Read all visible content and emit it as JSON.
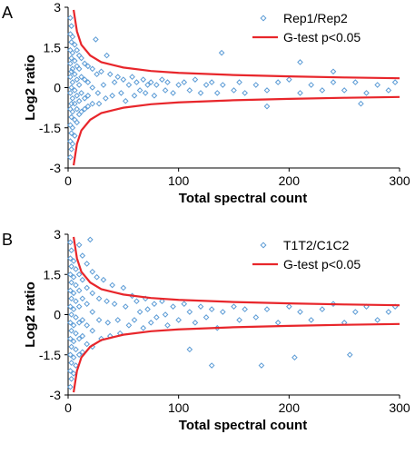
{
  "chart_data": [
    {
      "type": "scatter",
      "panel_label": "A",
      "xlabel": "Total spectral count",
      "ylabel": "Log2 ratio",
      "xlim": [
        0,
        300
      ],
      "ylim": [
        -3,
        3
      ],
      "xticks": [
        "0",
        "100",
        "200",
        "300"
      ],
      "yticks": [
        "3",
        "1.5",
        "0",
        "-1.5",
        "-3"
      ],
      "legend_position": "top-right",
      "grid": false,
      "colors": {
        "points": "#5b9bd5",
        "line": "#e8262b"
      },
      "series": [
        {
          "name": "Rep1/Rep2",
          "kind": "points",
          "points": [
            [
              2,
              2.6
            ],
            [
              2,
              2.0
            ],
            [
              2,
              1.4
            ],
            [
              2,
              0.9
            ],
            [
              2,
              0.4
            ],
            [
              2,
              -0.2
            ],
            [
              2,
              -0.8
            ],
            [
              2,
              -1.4
            ],
            [
              2,
              -2.0
            ],
            [
              2,
              -2.6
            ],
            [
              3,
              2.3
            ],
            [
              3,
              1.7
            ],
            [
              3,
              1.1
            ],
            [
              3,
              0.6
            ],
            [
              3,
              0.0
            ],
            [
              3,
              -0.6
            ],
            [
              3,
              -1.1
            ],
            [
              3,
              -1.7
            ],
            [
              3,
              -2.3
            ],
            [
              4,
              1.9
            ],
            [
              4,
              1.3
            ],
            [
              4,
              0.7
            ],
            [
              4,
              0.2
            ],
            [
              4,
              -0.4
            ],
            [
              4,
              -0.9
            ],
            [
              4,
              -1.5
            ],
            [
              4,
              -2.1
            ],
            [
              6,
              1.6
            ],
            [
              6,
              1.0
            ],
            [
              6,
              0.5
            ],
            [
              6,
              -0.1
            ],
            [
              6,
              -0.6
            ],
            [
              6,
              -1.2
            ],
            [
              6,
              -1.8
            ],
            [
              8,
              1.4
            ],
            [
              8,
              0.8
            ],
            [
              8,
              0.3
            ],
            [
              8,
              -0.3
            ],
            [
              8,
              -0.8
            ],
            [
              8,
              -1.3
            ],
            [
              10,
              1.2
            ],
            [
              10,
              0.7
            ],
            [
              10,
              0.1
            ],
            [
              10,
              -0.5
            ],
            [
              10,
              -1.0
            ],
            [
              12,
              1.1
            ],
            [
              12,
              0.4
            ],
            [
              12,
              -0.2
            ],
            [
              12,
              -0.9
            ],
            [
              15,
              0.9
            ],
            [
              15,
              0.3
            ],
            [
              15,
              -0.4
            ],
            [
              15,
              -0.8
            ],
            [
              18,
              0.8
            ],
            [
              18,
              0.2
            ],
            [
              18,
              -0.3
            ],
            [
              18,
              -0.7
            ],
            [
              22,
              0.7
            ],
            [
              22,
              0.0
            ],
            [
              22,
              -0.6
            ],
            [
              25,
              1.8
            ],
            [
              26,
              0.5
            ],
            [
              27,
              -0.2
            ],
            [
              28,
              -0.6
            ],
            [
              30,
              0.6
            ],
            [
              32,
              0.1
            ],
            [
              34,
              -0.4
            ],
            [
              35,
              1.2
            ],
            [
              38,
              0.5
            ],
            [
              40,
              -0.3
            ],
            [
              42,
              0.2
            ],
            [
              45,
              0.4
            ],
            [
              48,
              -0.2
            ],
            [
              50,
              0.3
            ],
            [
              52,
              -0.5
            ],
            [
              55,
              0.1
            ],
            [
              58,
              0.4
            ],
            [
              60,
              -0.3
            ],
            [
              62,
              0.2
            ],
            [
              65,
              -0.1
            ],
            [
              68,
              0.3
            ],
            [
              70,
              -0.2
            ],
            [
              72,
              0.1
            ],
            [
              75,
              0.2
            ],
            [
              78,
              -0.3
            ],
            [
              80,
              0.1
            ],
            [
              85,
              0.3
            ],
            [
              88,
              -0.1
            ],
            [
              90,
              0.2
            ],
            [
              95,
              -0.2
            ],
            [
              100,
              0.1
            ],
            [
              105,
              0.2
            ],
            [
              110,
              -0.1
            ],
            [
              115,
              0.3
            ],
            [
              120,
              -0.2
            ],
            [
              125,
              0.1
            ],
            [
              130,
              0.2
            ],
            [
              135,
              -0.2
            ],
            [
              140,
              0.1
            ],
            [
              150,
              -0.1
            ],
            [
              155,
              0.2
            ],
            [
              160,
              -0.2
            ],
            [
              170,
              0.1
            ],
            [
              180,
              -0.1
            ],
            [
              190,
              0.2
            ],
            [
              200,
              0.3
            ],
            [
              210,
              -0.2
            ],
            [
              220,
              0.1
            ],
            [
              230,
              -0.1
            ],
            [
              240,
              0.2
            ],
            [
              250,
              -0.1
            ],
            [
              260,
              0.2
            ],
            [
              270,
              -0.2
            ],
            [
              280,
              0.1
            ],
            [
              290,
              -0.1
            ],
            [
              296,
              0.2
            ],
            [
              139,
              1.3
            ],
            [
              210,
              0.95
            ],
            [
              265,
              -0.6
            ],
            [
              240,
              0.6
            ],
            [
              180,
              -0.7
            ]
          ]
        },
        {
          "name": "G-test p<0.05",
          "kind": "threshold-curves",
          "curve_points": [
            [
              5,
              2.9
            ],
            [
              8,
              2.1
            ],
            [
              12,
              1.6
            ],
            [
              20,
              1.2
            ],
            [
              30,
              0.95
            ],
            [
              50,
              0.75
            ],
            [
              75,
              0.62
            ],
            [
              100,
              0.55
            ],
            [
              150,
              0.47
            ],
            [
              200,
              0.42
            ],
            [
              250,
              0.38
            ],
            [
              300,
              0.35
            ]
          ],
          "symmetric": true
        }
      ]
    },
    {
      "type": "scatter",
      "panel_label": "B",
      "xlabel": "Total spectral count",
      "ylabel": "Log2 ratio",
      "xlim": [
        0,
        300
      ],
      "ylim": [
        -3,
        3
      ],
      "xticks": [
        "0",
        "100",
        "200",
        "300"
      ],
      "yticks": [
        "3",
        "1.5",
        "0",
        "-1.5",
        "-3"
      ],
      "legend_position": "top-right",
      "grid": false,
      "colors": {
        "points": "#5b9bd5",
        "line": "#e8262b"
      },
      "series": [
        {
          "name": "T1T2/C1C2",
          "kind": "points",
          "points": [
            [
              2,
              2.7
            ],
            [
              2,
              2.1
            ],
            [
              2,
              1.5
            ],
            [
              2,
              0.9
            ],
            [
              2,
              0.3
            ],
            [
              2,
              -0.3
            ],
            [
              2,
              -0.9
            ],
            [
              2,
              -1.5
            ],
            [
              2,
              -2.1
            ],
            [
              2,
              -2.7
            ],
            [
              3,
              2.4
            ],
            [
              3,
              1.8
            ],
            [
              3,
              1.2
            ],
            [
              3,
              0.6
            ],
            [
              3,
              0.0
            ],
            [
              3,
              -0.6
            ],
            [
              3,
              -1.2
            ],
            [
              3,
              -1.8
            ],
            [
              3,
              -2.4
            ],
            [
              5,
              2.0
            ],
            [
              5,
              1.4
            ],
            [
              5,
              0.8
            ],
            [
              5,
              0.2
            ],
            [
              5,
              -0.4
            ],
            [
              5,
              -1.0
            ],
            [
              5,
              -1.6
            ],
            [
              5,
              -2.2
            ],
            [
              7,
              1.7
            ],
            [
              7,
              1.1
            ],
            [
              7,
              0.5
            ],
            [
              7,
              -0.1
            ],
            [
              7,
              -0.7
            ],
            [
              7,
              -1.3
            ],
            [
              7,
              -1.9
            ],
            [
              10,
              2.6
            ],
            [
              10,
              1.5
            ],
            [
              10,
              0.9
            ],
            [
              10,
              0.3
            ],
            [
              10,
              -0.3
            ],
            [
              10,
              -0.9
            ],
            [
              10,
              -1.5
            ],
            [
              13,
              2.2
            ],
            [
              13,
              1.3
            ],
            [
              13,
              0.6
            ],
            [
              13,
              -0.2
            ],
            [
              13,
              -0.8
            ],
            [
              13,
              -1.4
            ],
            [
              17,
              1.9
            ],
            [
              17,
              1.0
            ],
            [
              17,
              0.4
            ],
            [
              17,
              -0.4
            ],
            [
              17,
              -1.1
            ],
            [
              20,
              2.8
            ],
            [
              22,
              1.6
            ],
            [
              22,
              0.8
            ],
            [
              22,
              0.1
            ],
            [
              22,
              -0.6
            ],
            [
              22,
              -1.2
            ],
            [
              26,
              1.4
            ],
            [
              28,
              0.6
            ],
            [
              28,
              -0.2
            ],
            [
              30,
              -0.9
            ],
            [
              32,
              1.3
            ],
            [
              35,
              0.5
            ],
            [
              36,
              -0.3
            ],
            [
              38,
              -0.8
            ],
            [
              40,
              1.1
            ],
            [
              42,
              0.4
            ],
            [
              45,
              -0.2
            ],
            [
              47,
              -0.7
            ],
            [
              50,
              1.0
            ],
            [
              52,
              0.3
            ],
            [
              55,
              -0.4
            ],
            [
              58,
              0.7
            ],
            [
              60,
              -0.2
            ],
            [
              62,
              0.5
            ],
            [
              65,
              0.1
            ],
            [
              68,
              -0.5
            ],
            [
              70,
              0.6
            ],
            [
              72,
              0.2
            ],
            [
              75,
              -0.3
            ],
            [
              78,
              0.4
            ],
            [
              80,
              -0.1
            ],
            [
              85,
              0.5
            ],
            [
              88,
              0.0
            ],
            [
              90,
              -0.4
            ],
            [
              95,
              0.3
            ],
            [
              100,
              -0.2
            ],
            [
              105,
              0.4
            ],
            [
              110,
              0.1
            ],
            [
              115,
              -0.3
            ],
            [
              120,
              0.3
            ],
            [
              125,
              -0.1
            ],
            [
              130,
              0.2
            ],
            [
              135,
              -0.5
            ],
            [
              140,
              0.1
            ],
            [
              150,
              0.3
            ],
            [
              155,
              -0.2
            ],
            [
              160,
              0.2
            ],
            [
              170,
              -0.1
            ],
            [
              175,
              -1.9
            ],
            [
              180,
              0.2
            ],
            [
              190,
              -0.3
            ],
            [
              200,
              0.3
            ],
            [
              205,
              -1.6
            ],
            [
              210,
              0.1
            ],
            [
              220,
              -0.2
            ],
            [
              230,
              0.2
            ],
            [
              240,
              0.4
            ],
            [
              250,
              -0.3
            ],
            [
              255,
              -1.5
            ],
            [
              260,
              0.1
            ],
            [
              270,
              0.3
            ],
            [
              280,
              -0.2
            ],
            [
              290,
              0.1
            ],
            [
              296,
              0.3
            ],
            [
              130,
              -1.9
            ],
            [
              110,
              -1.3
            ]
          ]
        },
        {
          "name": "G-test p<0.05",
          "kind": "threshold-curves",
          "curve_points": [
            [
              5,
              2.9
            ],
            [
              8,
              2.1
            ],
            [
              12,
              1.6
            ],
            [
              20,
              1.2
            ],
            [
              30,
              0.95
            ],
            [
              50,
              0.75
            ],
            [
              75,
              0.62
            ],
            [
              100,
              0.55
            ],
            [
              150,
              0.47
            ],
            [
              200,
              0.42
            ],
            [
              250,
              0.38
            ],
            [
              300,
              0.35
            ]
          ],
          "symmetric": true
        }
      ]
    }
  ]
}
